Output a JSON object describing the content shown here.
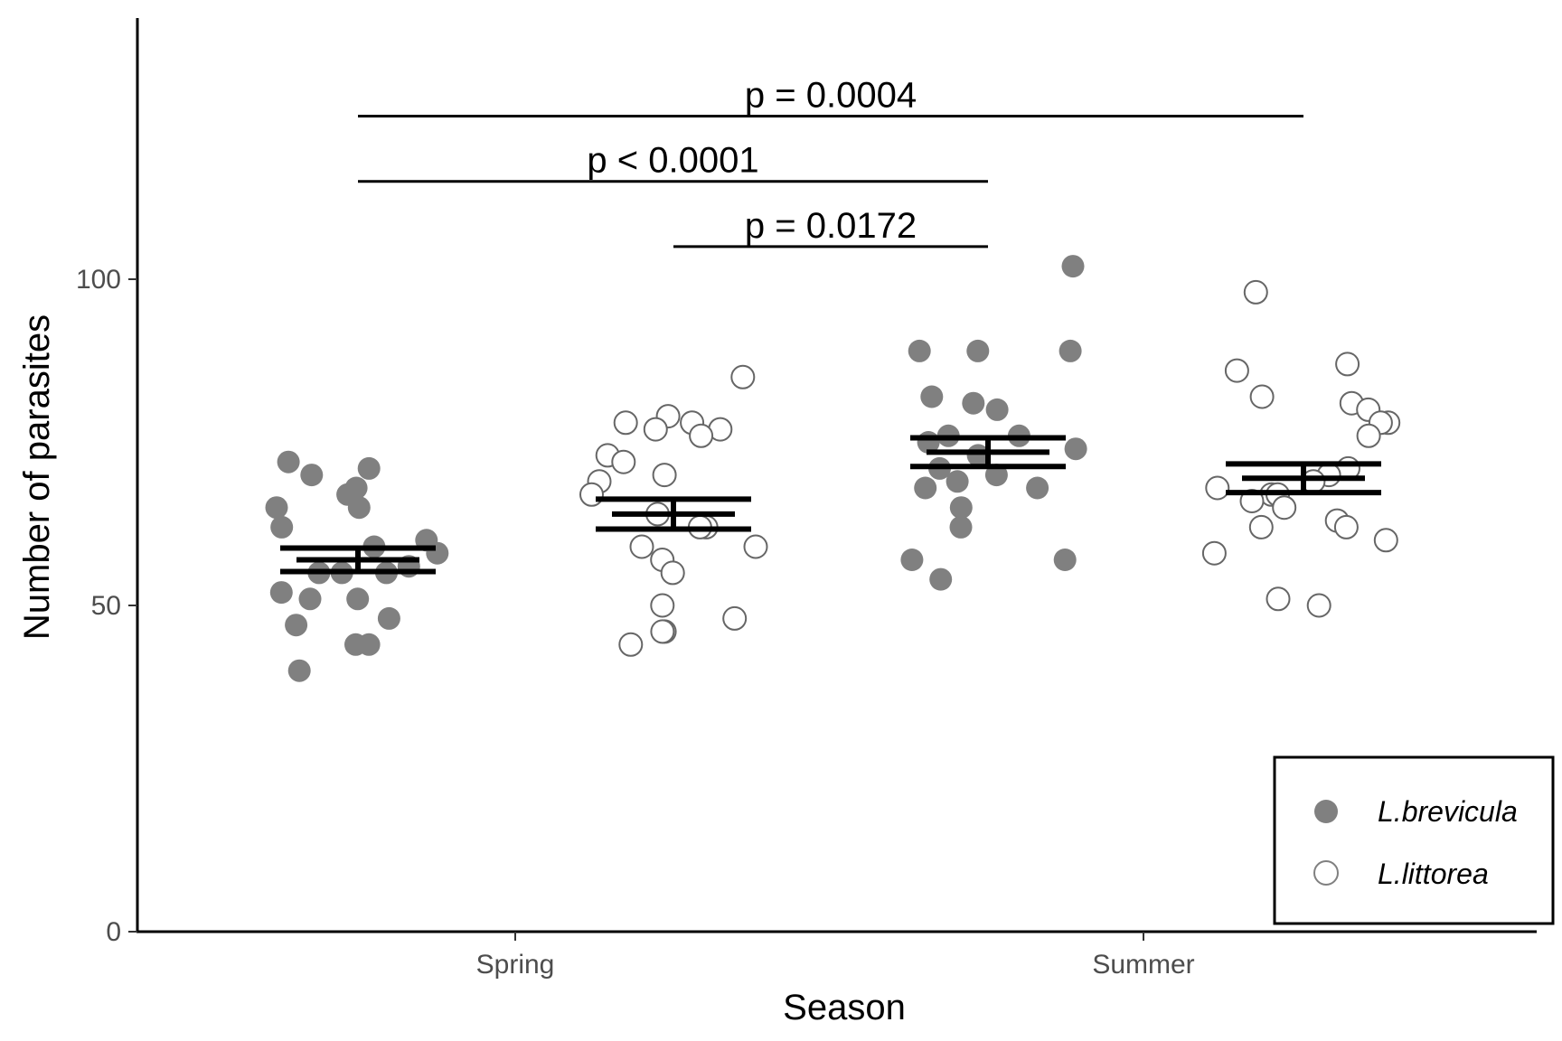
{
  "chart_data": {
    "type": "scatter",
    "title": "",
    "xlabel": "Season",
    "ylabel": "Number of parasites",
    "categories": [
      "Spring",
      "Summer"
    ],
    "ylim": [
      0,
      140
    ],
    "yticks": [
      0,
      50,
      100
    ],
    "grid": false,
    "legend_position": "bottom-right",
    "series": [
      {
        "name": "L.brevicula",
        "marker": "filled-circle",
        "color": "#808080",
        "points": [
          {
            "season": "Spring",
            "values": [
              68,
              71,
              72,
              70,
              67,
              65,
              62,
              60,
              59,
              55,
              55,
              56,
              55,
              52,
              51,
              51,
              48,
              47,
              44,
              44,
              40,
              65,
              58
            ]
          },
          {
            "season": "Summer",
            "values": [
              102,
              89,
              89,
              89,
              82,
              81,
              80,
              76,
              76,
              75,
              74,
              73,
              71,
              70,
              69,
              68,
              68,
              65,
              62,
              57,
              57,
              54
            ]
          }
        ],
        "mean": {
          "Spring": 57,
          "Summer": 73.5
        },
        "se": {
          "Spring": 1.8,
          "Summer": 2.2
        }
      },
      {
        "name": "L.littorea",
        "marker": "open-circle",
        "color": "#808080",
        "points": [
          {
            "season": "Spring",
            "values": [
              85,
              79,
              78,
              78,
              77,
              77,
              76,
              73,
              72,
              70,
              69,
              67,
              64,
              62,
              62,
              59,
              59,
              57,
              55,
              50,
              48,
              46,
              46,
              44
            ]
          },
          {
            "season": "Summer",
            "values": [
              98,
              87,
              86,
              82,
              81,
              80,
              78,
              78,
              76,
              71,
              70,
              69,
              68,
              67,
              67,
              66,
              65,
              63,
              62,
              62,
              60,
              58,
              51,
              50
            ]
          }
        ],
        "mean": {
          "Spring": 64,
          "Summer": 69.5
        },
        "se": {
          "Spring": 2.3,
          "Summer": 2.2
        }
      }
    ],
    "comparisons": [
      {
        "label": "p = 0.0004",
        "from": "Spring L.brevicula",
        "to": "Summer L.littorea",
        "y": 125
      },
      {
        "label": "p < 0.0001",
        "from": "Spring L.brevicula",
        "to": "Summer L.brevicula",
        "y": 115
      },
      {
        "label": "p = 0.0172",
        "from": "Spring L.littorea",
        "to": "Summer L.brevicula",
        "y": 105
      }
    ]
  }
}
